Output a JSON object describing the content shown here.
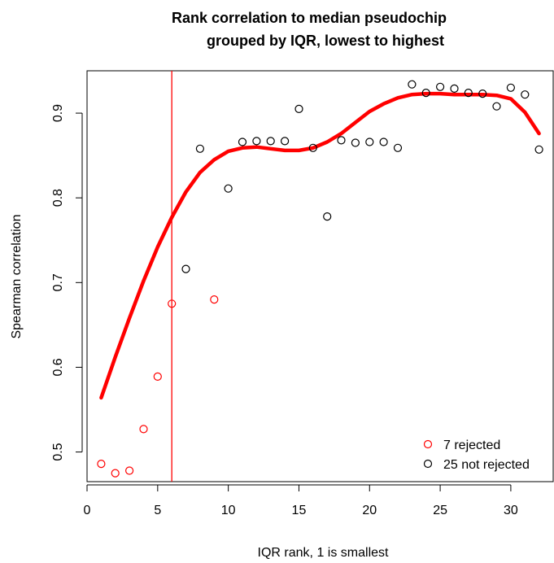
{
  "chart_data": {
    "type": "scatter",
    "title_line1": "Rank correlation to median pseudochip",
    "title_line2": "grouped by IQR, lowest to highest",
    "xlabel": "IQR rank, 1 is smallest",
    "ylabel": "Spearman correlation",
    "xlim": [
      0,
      33
    ],
    "ylim": [
      0.465,
      0.95
    ],
    "x_ticks": [
      0,
      5,
      10,
      15,
      20,
      25,
      30
    ],
    "y_ticks": [
      0.5,
      0.6,
      0.7,
      0.8,
      0.9
    ],
    "y_tick_labels": [
      "0.5",
      "0.6",
      "0.7",
      "0.8",
      "0.9"
    ],
    "vline_x": 6,
    "colors": {
      "rejected": "#ff0000",
      "not_rejected": "#000000",
      "smooth": "#ff0000",
      "vline": "#ff0000"
    },
    "legend": {
      "position": "bottom-right",
      "entries": [
        {
          "label": "7 rejected",
          "color": "#ff0000"
        },
        {
          "label": "25 not rejected",
          "color": "#000000"
        }
      ]
    },
    "series": [
      {
        "name": "7 rejected",
        "color": "#ff0000",
        "points": [
          {
            "x": 1,
            "y": 0.486
          },
          {
            "x": 2,
            "y": 0.475
          },
          {
            "x": 3,
            "y": 0.478
          },
          {
            "x": 4,
            "y": 0.527
          },
          {
            "x": 5,
            "y": 0.589
          },
          {
            "x": 6,
            "y": 0.675
          },
          {
            "x": 9,
            "y": 0.68
          }
        ]
      },
      {
        "name": "25 not rejected",
        "color": "#000000",
        "points": [
          {
            "x": 7,
            "y": 0.716
          },
          {
            "x": 8,
            "y": 0.858
          },
          {
            "x": 10,
            "y": 0.811
          },
          {
            "x": 11,
            "y": 0.866
          },
          {
            "x": 12,
            "y": 0.867
          },
          {
            "x": 13,
            "y": 0.867
          },
          {
            "x": 14,
            "y": 0.867
          },
          {
            "x": 15,
            "y": 0.905
          },
          {
            "x": 16,
            "y": 0.859
          },
          {
            "x": 17,
            "y": 0.778
          },
          {
            "x": 18,
            "y": 0.868
          },
          {
            "x": 19,
            "y": 0.865
          },
          {
            "x": 20,
            "y": 0.866
          },
          {
            "x": 21,
            "y": 0.866
          },
          {
            "x": 22,
            "y": 0.859
          },
          {
            "x": 23,
            "y": 0.934
          },
          {
            "x": 24,
            "y": 0.924
          },
          {
            "x": 25,
            "y": 0.931
          },
          {
            "x": 26,
            "y": 0.929
          },
          {
            "x": 27,
            "y": 0.924
          },
          {
            "x": 28,
            "y": 0.923
          },
          {
            "x": 29,
            "y": 0.908
          },
          {
            "x": 30,
            "y": 0.93
          },
          {
            "x": 31,
            "y": 0.922
          },
          {
            "x": 32,
            "y": 0.857
          }
        ]
      }
    ],
    "smooth_curve": {
      "color": "#ff0000",
      "points": [
        {
          "x": 1,
          "y": 0.564
        },
        {
          "x": 2,
          "y": 0.612
        },
        {
          "x": 3,
          "y": 0.658
        },
        {
          "x": 4,
          "y": 0.702
        },
        {
          "x": 5,
          "y": 0.742
        },
        {
          "x": 6,
          "y": 0.777
        },
        {
          "x": 7,
          "y": 0.807
        },
        {
          "x": 8,
          "y": 0.83
        },
        {
          "x": 9,
          "y": 0.845
        },
        {
          "x": 10,
          "y": 0.855
        },
        {
          "x": 11,
          "y": 0.859
        },
        {
          "x": 12,
          "y": 0.86
        },
        {
          "x": 13,
          "y": 0.858
        },
        {
          "x": 14,
          "y": 0.856
        },
        {
          "x": 15,
          "y": 0.856
        },
        {
          "x": 16,
          "y": 0.859
        },
        {
          "x": 17,
          "y": 0.866
        },
        {
          "x": 18,
          "y": 0.876
        },
        {
          "x": 19,
          "y": 0.889
        },
        {
          "x": 20,
          "y": 0.902
        },
        {
          "x": 21,
          "y": 0.911
        },
        {
          "x": 22,
          "y": 0.918
        },
        {
          "x": 23,
          "y": 0.922
        },
        {
          "x": 24,
          "y": 0.923
        },
        {
          "x": 25,
          "y": 0.923
        },
        {
          "x": 26,
          "y": 0.922
        },
        {
          "x": 27,
          "y": 0.922
        },
        {
          "x": 28,
          "y": 0.922
        },
        {
          "x": 29,
          "y": 0.921
        },
        {
          "x": 30,
          "y": 0.917
        },
        {
          "x": 31,
          "y": 0.901
        },
        {
          "x": 32,
          "y": 0.876
        }
      ]
    }
  }
}
